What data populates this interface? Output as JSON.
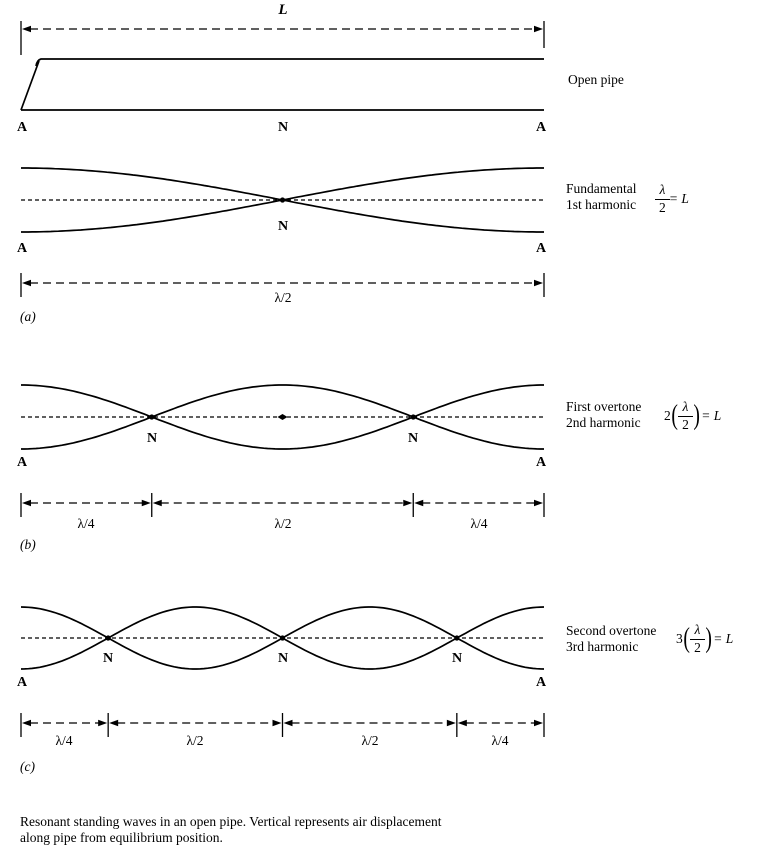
{
  "figure": {
    "length_label": "L",
    "pipe_label": "Open pipe",
    "pipe_row": {
      "left": "A",
      "center": "N",
      "right": "A"
    },
    "caption": {
      "line1": "Resonant standing waves in an open pipe. Vertical represents air displacement",
      "line2": "along pipe from equilibrium position."
    },
    "colors": {
      "ink": "#000000",
      "paper": "#ffffff"
    }
  },
  "sections": [
    {
      "tag": "(a)",
      "name_line1": "Fundamental",
      "name_line2": "1st harmonic",
      "harmonic": 1,
      "formula": {
        "coefficient": "",
        "open_paren": "",
        "numerator": "λ",
        "denominator": "2",
        "close_paren": "",
        "equals": "=",
        "rhs": "L"
      },
      "node_labels": [
        "N"
      ],
      "end_left": "A",
      "end_right": "A",
      "dimension_labels": [
        "λ/2"
      ]
    },
    {
      "tag": "(b)",
      "name_line1": "First overtone",
      "name_line2": "2nd harmonic",
      "harmonic": 2,
      "formula": {
        "coefficient": "2",
        "open_paren": "(",
        "numerator": "λ",
        "denominator": "2",
        "close_paren": ")",
        "equals": "=",
        "rhs": "L"
      },
      "node_labels": [
        "N",
        "N"
      ],
      "end_left": "A",
      "end_right": "A",
      "dimension_labels": [
        "λ/4",
        "λ/2",
        "λ/4"
      ]
    },
    {
      "tag": "(c)",
      "name_line1": "Second overtone",
      "name_line2": "3rd harmonic",
      "harmonic": 3,
      "formula": {
        "coefficient": "3",
        "open_paren": "(",
        "numerator": "λ",
        "denominator": "2",
        "close_paren": ")",
        "equals": "=",
        "rhs": "L"
      },
      "node_labels": [
        "N",
        "N",
        "N"
      ],
      "end_left": "A",
      "end_right": "A",
      "dimension_labels": [
        "λ/4",
        "λ/2",
        "λ/2",
        "λ/4"
      ]
    }
  ]
}
